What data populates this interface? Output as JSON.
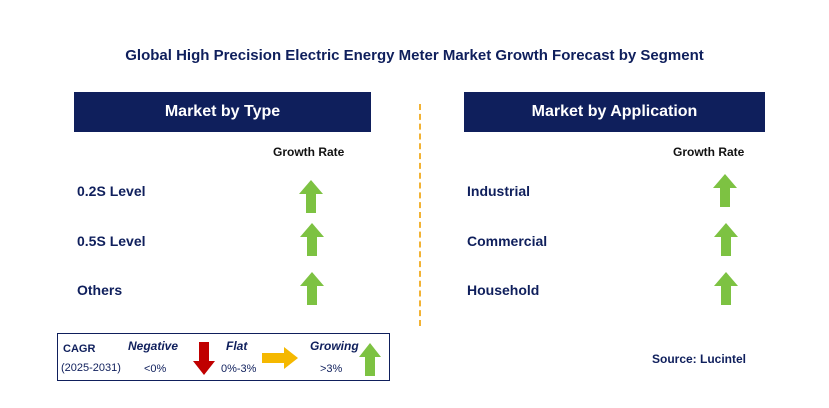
{
  "title": "Global High Precision Electric Energy Meter Market Growth Forecast by Segment",
  "left_panel": {
    "header": "Market by Type",
    "column_label": "Growth Rate",
    "rows": [
      {
        "label": "0.2S Level",
        "trend": "growing"
      },
      {
        "label": "0.5S Level",
        "trend": "growing"
      },
      {
        "label": "Others",
        "trend": "growing"
      }
    ]
  },
  "right_panel": {
    "header": "Market by Application",
    "column_label": "Growth Rate",
    "rows": [
      {
        "label": "Industrial",
        "trend": "growing"
      },
      {
        "label": "Commercial",
        "trend": "growing"
      },
      {
        "label": "Household",
        "trend": "growing"
      }
    ]
  },
  "legend": {
    "cagr_label": "CAGR",
    "period": "(2025-2031)",
    "negative": {
      "label": "Negative",
      "range": "<0%",
      "icon": "down-arrow-icon"
    },
    "flat": {
      "label": "Flat",
      "range": "0%-3%",
      "icon": "right-arrow-icon"
    },
    "growing": {
      "label": "Growing",
      "range": ">3%",
      "icon": "up-arrow-icon"
    }
  },
  "source": "Source: Lucintel",
  "colors": {
    "navy": "#0f1f5c",
    "growing": "#7dc242",
    "negative": "#c00000",
    "flat": "#f5b800",
    "divider": "#f2b233"
  }
}
